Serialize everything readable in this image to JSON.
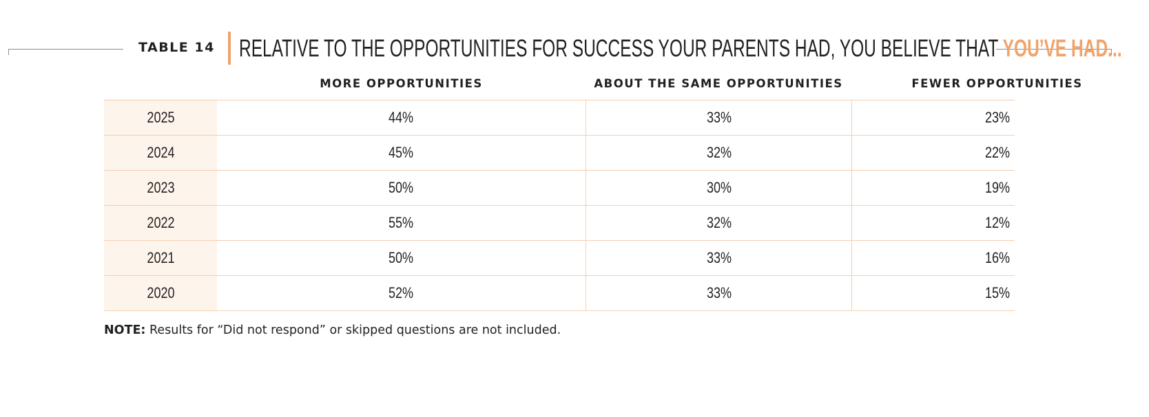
{
  "header": {
    "table_label": "TABLE 14",
    "title_main": "RELATIVE TO THE OPPORTUNITIES FOR SUCCESS YOUR PARENTS HAD, YOU BELIEVE THAT ",
    "title_accent": "YOU’VE HAD...",
    "accent_color": "#f0a36b"
  },
  "columns": [
    "MORE OPPORTUNITIES",
    "ABOUT THE SAME OPPORTUNITIES",
    "FEWER OPPORTUNITIES"
  ],
  "rows": [
    {
      "year": "2025",
      "more": "44%",
      "same": "33%",
      "fewer": "23%"
    },
    {
      "year": "2024",
      "more": "45%",
      "same": "32%",
      "fewer": "22%"
    },
    {
      "year": "2023",
      "more": "50%",
      "same": "30%",
      "fewer": "19%"
    },
    {
      "year": "2022",
      "more": "55%",
      "same": "32%",
      "fewer": "12%"
    },
    {
      "year": "2021",
      "more": "50%",
      "same": "33%",
      "fewer": "16%"
    },
    {
      "year": "2020",
      "more": "52%",
      "same": "33%",
      "fewer": "15%"
    }
  ],
  "note": {
    "label": "NOTE:",
    "text": " Results for “Did not respond” or skipped questions are not included."
  }
}
